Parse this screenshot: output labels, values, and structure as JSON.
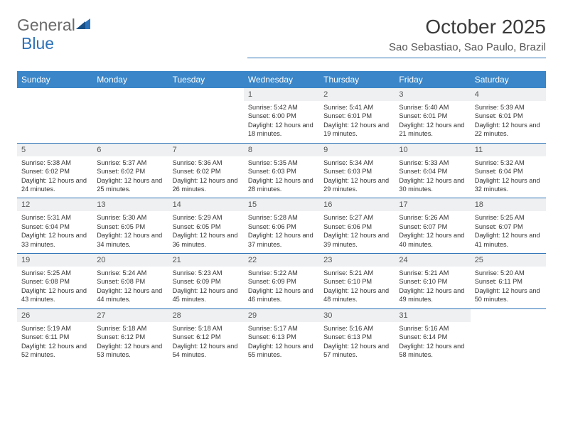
{
  "brand": {
    "part1": "General",
    "part2": "Blue"
  },
  "title": "October 2025",
  "location": "Sao Sebastiao, Sao Paulo, Brazil",
  "colors": {
    "accent": "#3a86c8",
    "rule": "#2d72b8",
    "dayhead_bg": "#eef0f1"
  },
  "weekday_headers": [
    "Sunday",
    "Monday",
    "Tuesday",
    "Wednesday",
    "Thursday",
    "Friday",
    "Saturday"
  ],
  "weeks": [
    [
      null,
      null,
      null,
      {
        "n": "1",
        "sr": "5:42 AM",
        "ss": "6:00 PM",
        "dl": "12 hours and 18 minutes."
      },
      {
        "n": "2",
        "sr": "5:41 AM",
        "ss": "6:01 PM",
        "dl": "12 hours and 19 minutes."
      },
      {
        "n": "3",
        "sr": "5:40 AM",
        "ss": "6:01 PM",
        "dl": "12 hours and 21 minutes."
      },
      {
        "n": "4",
        "sr": "5:39 AM",
        "ss": "6:01 PM",
        "dl": "12 hours and 22 minutes."
      }
    ],
    [
      {
        "n": "5",
        "sr": "5:38 AM",
        "ss": "6:02 PM",
        "dl": "12 hours and 24 minutes."
      },
      {
        "n": "6",
        "sr": "5:37 AM",
        "ss": "6:02 PM",
        "dl": "12 hours and 25 minutes."
      },
      {
        "n": "7",
        "sr": "5:36 AM",
        "ss": "6:02 PM",
        "dl": "12 hours and 26 minutes."
      },
      {
        "n": "8",
        "sr": "5:35 AM",
        "ss": "6:03 PM",
        "dl": "12 hours and 28 minutes."
      },
      {
        "n": "9",
        "sr": "5:34 AM",
        "ss": "6:03 PM",
        "dl": "12 hours and 29 minutes."
      },
      {
        "n": "10",
        "sr": "5:33 AM",
        "ss": "6:04 PM",
        "dl": "12 hours and 30 minutes."
      },
      {
        "n": "11",
        "sr": "5:32 AM",
        "ss": "6:04 PM",
        "dl": "12 hours and 32 minutes."
      }
    ],
    [
      {
        "n": "12",
        "sr": "5:31 AM",
        "ss": "6:04 PM",
        "dl": "12 hours and 33 minutes."
      },
      {
        "n": "13",
        "sr": "5:30 AM",
        "ss": "6:05 PM",
        "dl": "12 hours and 34 minutes."
      },
      {
        "n": "14",
        "sr": "5:29 AM",
        "ss": "6:05 PM",
        "dl": "12 hours and 36 minutes."
      },
      {
        "n": "15",
        "sr": "5:28 AM",
        "ss": "6:06 PM",
        "dl": "12 hours and 37 minutes."
      },
      {
        "n": "16",
        "sr": "5:27 AM",
        "ss": "6:06 PM",
        "dl": "12 hours and 39 minutes."
      },
      {
        "n": "17",
        "sr": "5:26 AM",
        "ss": "6:07 PM",
        "dl": "12 hours and 40 minutes."
      },
      {
        "n": "18",
        "sr": "5:25 AM",
        "ss": "6:07 PM",
        "dl": "12 hours and 41 minutes."
      }
    ],
    [
      {
        "n": "19",
        "sr": "5:25 AM",
        "ss": "6:08 PM",
        "dl": "12 hours and 43 minutes."
      },
      {
        "n": "20",
        "sr": "5:24 AM",
        "ss": "6:08 PM",
        "dl": "12 hours and 44 minutes."
      },
      {
        "n": "21",
        "sr": "5:23 AM",
        "ss": "6:09 PM",
        "dl": "12 hours and 45 minutes."
      },
      {
        "n": "22",
        "sr": "5:22 AM",
        "ss": "6:09 PM",
        "dl": "12 hours and 46 minutes."
      },
      {
        "n": "23",
        "sr": "5:21 AM",
        "ss": "6:10 PM",
        "dl": "12 hours and 48 minutes."
      },
      {
        "n": "24",
        "sr": "5:21 AM",
        "ss": "6:10 PM",
        "dl": "12 hours and 49 minutes."
      },
      {
        "n": "25",
        "sr": "5:20 AM",
        "ss": "6:11 PM",
        "dl": "12 hours and 50 minutes."
      }
    ],
    [
      {
        "n": "26",
        "sr": "5:19 AM",
        "ss": "6:11 PM",
        "dl": "12 hours and 52 minutes."
      },
      {
        "n": "27",
        "sr": "5:18 AM",
        "ss": "6:12 PM",
        "dl": "12 hours and 53 minutes."
      },
      {
        "n": "28",
        "sr": "5:18 AM",
        "ss": "6:12 PM",
        "dl": "12 hours and 54 minutes."
      },
      {
        "n": "29",
        "sr": "5:17 AM",
        "ss": "6:13 PM",
        "dl": "12 hours and 55 minutes."
      },
      {
        "n": "30",
        "sr": "5:16 AM",
        "ss": "6:13 PM",
        "dl": "12 hours and 57 minutes."
      },
      {
        "n": "31",
        "sr": "5:16 AM",
        "ss": "6:14 PM",
        "dl": "12 hours and 58 minutes."
      },
      null
    ]
  ],
  "labels": {
    "sunrise": "Sunrise:",
    "sunset": "Sunset:",
    "daylight": "Daylight:"
  }
}
